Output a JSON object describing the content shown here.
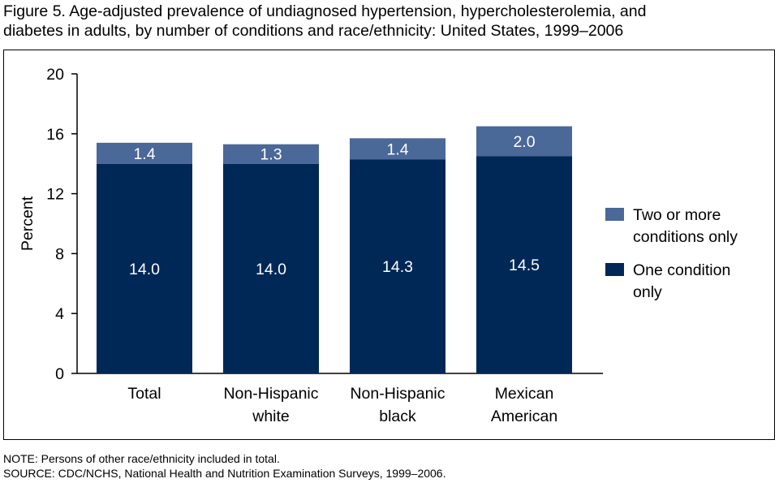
{
  "figure": {
    "title_line1": "Figure 5. Age-adjusted prevalence of undiagnosed hypertension, hypercholesterolemia, and",
    "title_line2": "diabetes in adults, by number of conditions and race/ethnicity: United States, 1999–2006",
    "note": "NOTE: Persons of other race/ethnicity included in total.",
    "source": "SOURCE: CDC/NCHS, National Health and Nutrition Examination Surveys, 1999–2006."
  },
  "legend": {
    "two_or_more_line1": "Two or more",
    "two_or_more_line2": "conditions only",
    "one_line1": "One condition",
    "one_line2": "only"
  },
  "colors": {
    "one_condition": "#002856",
    "two_or_more": "#4a6898",
    "axis": "#000000",
    "label_text": "#ffffff"
  },
  "chart_data": {
    "type": "bar",
    "stacked": true,
    "title": "Figure 5. Age-adjusted prevalence of undiagnosed hypertension, hypercholesterolemia, and diabetes in adults, by number of conditions and race/ethnicity: United States, 1999–2006",
    "xlabel": "",
    "ylabel": "Percent",
    "ylim": [
      0,
      20
    ],
    "yticks": [
      0,
      4,
      8,
      12,
      16,
      20
    ],
    "categories": [
      [
        "Total"
      ],
      [
        "Non-Hispanic",
        "white"
      ],
      [
        "Non-Hispanic",
        "black"
      ],
      [
        "Mexican",
        "American"
      ]
    ],
    "series": [
      {
        "name": "One condition only",
        "values": [
          14.0,
          14.0,
          14.3,
          14.5
        ],
        "labels": [
          "14.0",
          "14.0",
          "14.3",
          "14.5"
        ]
      },
      {
        "name": "Two or more conditions only",
        "values": [
          1.4,
          1.3,
          1.4,
          2.0
        ],
        "labels": [
          "1.4",
          "1.3",
          "1.4",
          "2.0"
        ]
      }
    ],
    "legend_position": "right",
    "grid": false
  }
}
